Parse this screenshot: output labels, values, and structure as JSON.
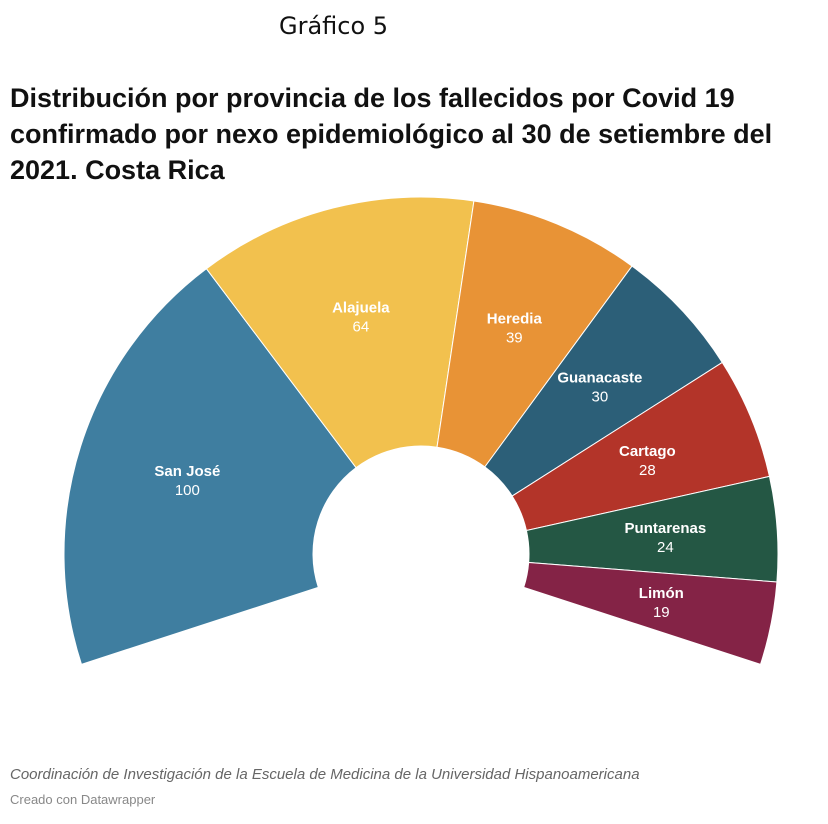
{
  "header": {
    "figure_label": "Gráfico 5",
    "title": "Distribución por provincia de los fallecidos por Covid 19 confirmado por nexo epidemiológico al 30 de setiembre del 2021. Costa Rica"
  },
  "chart_data": {
    "type": "pie",
    "variant": "semicircle-donut",
    "categories": [
      "San José",
      "Alajuela",
      "Heredia",
      "Guanacaste",
      "Cartago",
      "Puntarenas",
      "Limón"
    ],
    "values": [
      100,
      64,
      39,
      30,
      28,
      24,
      19
    ],
    "colors": [
      "#3f7ea0",
      "#f2c14e",
      "#e89336",
      "#2c5f78",
      "#b33429",
      "#245744",
      "#842346"
    ],
    "legend": "none",
    "labels": "inside"
  },
  "footer": {
    "source": "Coordinación de Investigación de la Escuela de Medicina de la Universidad Hispanoamericana",
    "credit": "Creado con Datawrapper"
  }
}
